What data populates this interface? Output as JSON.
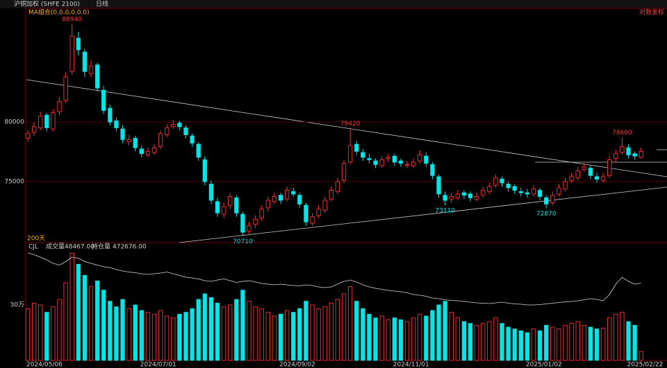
{
  "chart_data": [
    {
      "type": "candlestick",
      "title": "沪铜加权 (SHFE 2100)",
      "period": "日线",
      "indicator": "MA组合(0,0,0,0,0,0)",
      "scale_label": "对数坐标",
      "range_label": "200天",
      "log_scale": true,
      "grid": true,
      "up_color": "#ff3232",
      "down_color": "#00e5e5",
      "categories": [
        "2024/05/06",
        null,
        null,
        null,
        null,
        null,
        null,
        null,
        null,
        null,
        null,
        null,
        null,
        null,
        null,
        null,
        null,
        null,
        "2024/07/01",
        null,
        null,
        null,
        null,
        null,
        null,
        null,
        null,
        null,
        null,
        null,
        null,
        null,
        null,
        null,
        null,
        null,
        null,
        null,
        null,
        null,
        "2024/09/02",
        null,
        null,
        null,
        null,
        null,
        null,
        null,
        null,
        null,
        null,
        null,
        null,
        null,
        null,
        null,
        null,
        null,
        "2024/11/01",
        null,
        null,
        null,
        null,
        null,
        null,
        null,
        null,
        null,
        null,
        null,
        null,
        null,
        null,
        null,
        null,
        null,
        null,
        null,
        null,
        "2025/01/02",
        null,
        null,
        null,
        null,
        null,
        null,
        null,
        null,
        null,
        null,
        null,
        null,
        null,
        null,
        null,
        "2025/02/22",
        null,
        null
      ],
      "open": [
        78600,
        79100,
        79500,
        80600,
        79400,
        80900,
        81900,
        84500,
        87600,
        86300,
        84300,
        85100,
        82800,
        81200,
        80100,
        79400,
        78300,
        78600,
        77700,
        77200,
        77400,
        77900,
        78900,
        79600,
        79900,
        79500,
        78800,
        78100,
        76800,
        74800,
        73400,
        72400,
        73100,
        73700,
        72400,
        71100,
        71600,
        72100,
        72900,
        73400,
        73900,
        73600,
        74200,
        73900,
        73100,
        71700,
        72300,
        72700,
        73600,
        74200,
        75100,
        76600,
        78100,
        77400,
        76900,
        76700,
        76300,
        76900,
        77100,
        76700,
        76400,
        76300,
        76700,
        77100,
        76400,
        75400,
        73900,
        73600,
        73700,
        74100,
        74000,
        73600,
        73900,
        74200,
        74700,
        75200,
        74800,
        74600,
        74200,
        74100,
        74000,
        74300,
        73700,
        73300,
        74000,
        74400,
        75100,
        75300,
        76000,
        76100,
        75400,
        75100,
        75500,
        76900,
        77400,
        77800,
        77300,
        77000
      ],
      "high": [
        79300,
        80000,
        80900,
        80800,
        81100,
        82200,
        84400,
        88940,
        88200,
        86600,
        85600,
        85300,
        83200,
        81500,
        80400,
        79700,
        78900,
        78800,
        78000,
        77800,
        78100,
        79300,
        79800,
        80200,
        80100,
        79700,
        79000,
        78300,
        77100,
        75100,
        73700,
        73300,
        74100,
        73900,
        72600,
        71800,
        72300,
        73100,
        73800,
        74100,
        74100,
        74600,
        74500,
        74100,
        73300,
        72500,
        73100,
        73800,
        74600,
        75300,
        76800,
        79420,
        78400,
        77700,
        77300,
        76900,
        77100,
        77300,
        77300,
        76900,
        76700,
        76900,
        77600,
        77400,
        76600,
        75600,
        74200,
        74100,
        74300,
        74300,
        74200,
        74100,
        74600,
        74900,
        75600,
        75400,
        75000,
        74800,
        74500,
        74400,
        74700,
        74500,
        73900,
        74200,
        74800,
        75300,
        75700,
        76200,
        76500,
        76300,
        75700,
        75700,
        77100,
        77600,
        78660,
        78100,
        77500,
        77800
      ],
      "low": [
        78300,
        78800,
        79300,
        79200,
        79200,
        80600,
        81700,
        84200,
        86000,
        84000,
        84000,
        82700,
        80700,
        79700,
        79200,
        78200,
        78000,
        77500,
        77000,
        77000,
        77200,
        77700,
        78700,
        79400,
        79300,
        78600,
        77900,
        76700,
        74700,
        73200,
        72200,
        72100,
        72800,
        72200,
        70710,
        70900,
        71300,
        71900,
        72600,
        73200,
        73200,
        73400,
        73800,
        72900,
        71500,
        71500,
        72100,
        72500,
        73400,
        74000,
        74900,
        76400,
        77200,
        76700,
        76500,
        76100,
        76100,
        76600,
        76300,
        76200,
        76100,
        76100,
        76500,
        76200,
        75200,
        73700,
        73110,
        73300,
        73500,
        73600,
        73400,
        73400,
        73700,
        74000,
        74500,
        74600,
        74200,
        74000,
        73800,
        73700,
        73800,
        73500,
        72870,
        73100,
        73800,
        74200,
        74900,
        75100,
        75800,
        75200,
        74900,
        74900,
        75300,
        76600,
        77200,
        76900,
        76800,
        76900
      ],
      "close": [
        79000,
        79600,
        80500,
        79500,
        80800,
        81800,
        84000,
        87800,
        86500,
        84500,
        85000,
        83000,
        81000,
        80000,
        79500,
        78500,
        78500,
        77800,
        77300,
        77500,
        77800,
        79000,
        79500,
        79800,
        79600,
        78900,
        78200,
        77000,
        75000,
        73500,
        72500,
        73000,
        73800,
        72500,
        71000,
        71500,
        72000,
        72800,
        73500,
        73800,
        73500,
        74300,
        74000,
        73200,
        71800,
        72200,
        72800,
        73500,
        74300,
        75000,
        76500,
        78000,
        77500,
        77000,
        76800,
        76400,
        76800,
        77000,
        76600,
        76500,
        76400,
        76600,
        77200,
        76500,
        75500,
        74000,
        73500,
        73800,
        74000,
        73900,
        73700,
        73800,
        74300,
        74600,
        75300,
        74900,
        74500,
        74300,
        74100,
        74000,
        74400,
        73800,
        73200,
        73900,
        74500,
        75000,
        75400,
        75900,
        76200,
        75500,
        75200,
        75400,
        76800,
        77300,
        77900,
        77200,
        77100,
        77500
      ],
      "ylim": [
        70210,
        90480
      ],
      "yticks": [
        80000,
        75000
      ],
      "high_labels": [
        88940,
        79420,
        78660
      ],
      "low_labels": [
        70710,
        73110,
        72870
      ]
    },
    {
      "type": "volume",
      "legend": "CJL",
      "ylim": [
        0,
        637500
      ],
      "yticks": [
        {
          "value": 300000,
          "label": "30万"
        }
      ],
      "y2lim": [
        250000,
        590000
      ],
      "series": [
        {
          "name": "成交量",
          "legend_value": "48467.00",
          "values": [
            280000,
            310000,
            300000,
            260000,
            290000,
            330000,
            420000,
            580000,
            520000,
            460000,
            400000,
            430000,
            380000,
            320000,
            290000,
            330000,
            280000,
            300000,
            270000,
            260000,
            250000,
            270000,
            240000,
            230000,
            250000,
            260000,
            280000,
            330000,
            360000,
            340000,
            310000,
            290000,
            300000,
            330000,
            380000,
            320000,
            290000,
            280000,
            260000,
            240000,
            250000,
            270000,
            260000,
            280000,
            320000,
            300000,
            280000,
            290000,
            310000,
            330000,
            360000,
            400000,
            320000,
            280000,
            250000,
            230000,
            240000,
            220000,
            230000,
            220000,
            210000,
            230000,
            250000,
            240000,
            270000,
            300000,
            320000,
            260000,
            230000,
            210000,
            200000,
            190000,
            200000,
            210000,
            230000,
            200000,
            180000,
            170000,
            160000,
            150000,
            170000,
            160000,
            190000,
            180000,
            170000,
            190000,
            200000,
            210000,
            190000,
            180000,
            170000,
            175000,
            230000,
            250000,
            260000,
            210000,
            190000,
            48467
          ]
        },
        {
          "name": "持仓量",
          "legend_value": "472676.00",
          "color": "#d8d8d8",
          "axis": "y2",
          "values": [
            560000,
            555000,
            548000,
            540000,
            530000,
            525000,
            535000,
            548000,
            545000,
            535000,
            530000,
            525000,
            520000,
            518000,
            512000,
            508000,
            505000,
            503000,
            500000,
            498000,
            500000,
            502000,
            505000,
            500000,
            495000,
            490000,
            488000,
            485000,
            480000,
            478000,
            482000,
            485000,
            480000,
            475000,
            478000,
            480000,
            476000,
            472000,
            470000,
            468000,
            470000,
            468000,
            466000,
            465000,
            468000,
            466000,
            462000,
            460000,
            462000,
            470000,
            478000,
            482000,
            476000,
            468000,
            462000,
            458000,
            455000,
            452000,
            450000,
            448000,
            445000,
            440000,
            438000,
            435000,
            430000,
            428000,
            425000,
            423000,
            422000,
            420000,
            418000,
            416000,
            415000,
            414000,
            416000,
            418000,
            415000,
            413000,
            412000,
            410000,
            410000,
            411000,
            413000,
            415000,
            417000,
            419000,
            420000,
            422000,
            425000,
            428000,
            426000,
            422000,
            440000,
            470000,
            490000,
            478000,
            470000,
            472676
          ]
        }
      ]
    }
  ]
}
